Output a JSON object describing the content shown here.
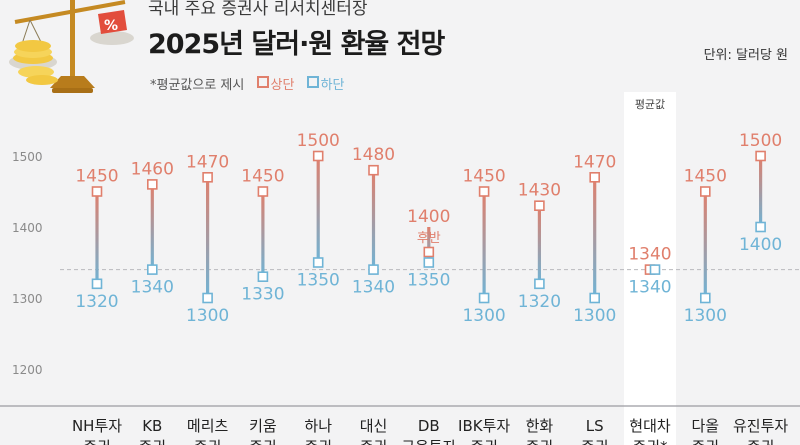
{
  "header": {
    "kicker": "국내 주요 증권사 리서치센터장",
    "title": "2025년 달러·원 환율 전망",
    "unit": "단위: 달러당 원",
    "note": "*평균값으로 제시",
    "legend_upper": "상단",
    "legend_lower": "하단"
  },
  "colors": {
    "upper": "#e07f6c",
    "lower": "#6fb4d6",
    "grid": "#cfcfd3",
    "bg": "#f3f3f4",
    "highlight_bg": "#ffffff"
  },
  "chart_data": {
    "type": "range",
    "ylim": [
      1150,
      1560
    ],
    "yticks": [
      1200,
      1300,
      1400,
      1500
    ],
    "reference_line": 1340,
    "highlight_label": "평균값",
    "categories": [
      [
        "NH투자",
        "증권"
      ],
      [
        "KB",
        "증권"
      ],
      [
        "메리츠",
        "증권"
      ],
      [
        "키움",
        "증권"
      ],
      [
        "하나",
        "증권"
      ],
      [
        "대신",
        "증권"
      ],
      [
        "DB",
        "금융투자"
      ],
      [
        "IBK투자",
        "증권"
      ],
      [
        "한화",
        "증권"
      ],
      [
        "LS",
        "증권"
      ],
      [
        "현대차",
        "증권*"
      ],
      [
        "다올",
        "증권"
      ],
      [
        "유진투자",
        "증권"
      ]
    ],
    "upper": [
      1450,
      1460,
      1470,
      1450,
      1500,
      1480,
      1400,
      1450,
      1430,
      1470,
      1340,
      1450,
      1500
    ],
    "lower": [
      1320,
      1340,
      1300,
      1330,
      1350,
      1340,
      1350,
      1300,
      1320,
      1300,
      1340,
      1300,
      1400
    ],
    "annotations": [
      {
        "index": 6,
        "text": "후반"
      }
    ],
    "highlight_index": 10
  }
}
